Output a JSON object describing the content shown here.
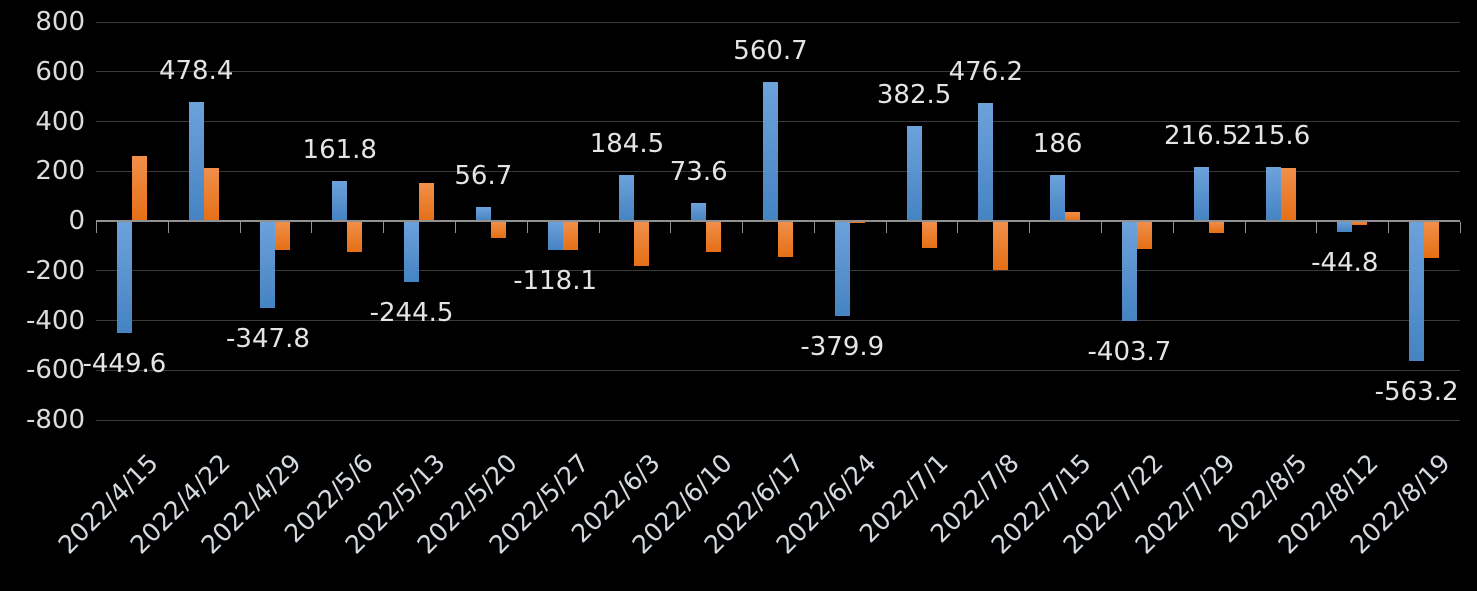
{
  "chart_data": {
    "type": "bar",
    "title": "",
    "xlabel": "",
    "ylabel": "",
    "categories": [
      "2022/4/15",
      "2022/4/22",
      "2022/4/29",
      "2022/5/6",
      "2022/5/13",
      "2022/5/20",
      "2022/5/27",
      "2022/6/3",
      "2022/6/10",
      "2022/6/17",
      "2022/6/24",
      "2022/7/1",
      "2022/7/8",
      "2022/7/15",
      "2022/7/22",
      "2022/7/29",
      "2022/8/5",
      "2022/8/12",
      "2022/8/19"
    ],
    "series": [
      {
        "name": "series-1-blue",
        "values": [
          -449.6,
          478.4,
          -347.8,
          161.8,
          -244.5,
          56.7,
          -118.1,
          184.5,
          73.6,
          560.7,
          -379.9,
          382.5,
          476.2,
          186,
          -403.7,
          216.5,
          215.6,
          -44.8,
          -563.2
        ],
        "data_labels": true,
        "gradient_top": "#6DA2DB",
        "gradient_bottom": "#4583C2"
      },
      {
        "name": "series-2-orange",
        "values": [
          260,
          214,
          -116,
          -124,
          153,
          -69,
          -118,
          -181,
          -124,
          -144,
          -10,
          -108,
          -196,
          35,
          -111,
          -48,
          213,
          -15,
          -150
        ],
        "data_labels": false,
        "gradient_top": "#F1904C",
        "gradient_bottom": "#E56F15"
      }
    ],
    "y_ticks": [
      800,
      600,
      400,
      200,
      0,
      -200,
      -400,
      -600,
      -800
    ],
    "ylim": [
      -800,
      800
    ],
    "grid": true,
    "legend": "none",
    "x_label_rotation_deg": 45,
    "colors": {
      "background": "#000000",
      "gridline": "#3A3A3A",
      "axis_line": "#919191",
      "y_label_text": "#DCDCDC",
      "data_label_text": "#E4E4E4",
      "x_label_text": "#D5DAE0"
    }
  }
}
